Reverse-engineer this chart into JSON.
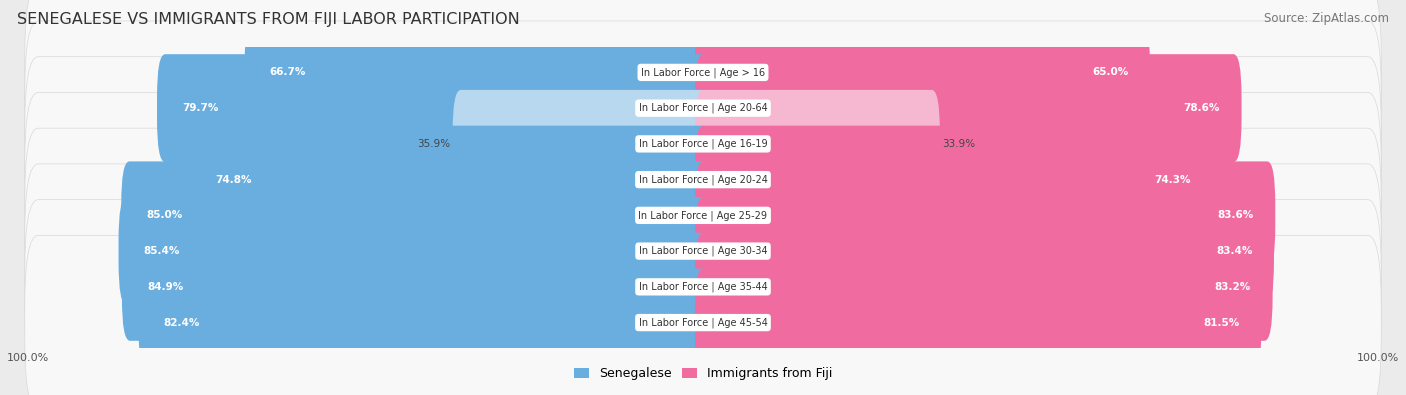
{
  "title": "SENEGALESE VS IMMIGRANTS FROM FIJI LABOR PARTICIPATION",
  "source": "Source: ZipAtlas.com",
  "categories": [
    "In Labor Force | Age > 16",
    "In Labor Force | Age 20-64",
    "In Labor Force | Age 16-19",
    "In Labor Force | Age 20-24",
    "In Labor Force | Age 25-29",
    "In Labor Force | Age 30-34",
    "In Labor Force | Age 35-44",
    "In Labor Force | Age 45-54"
  ],
  "senegalese": [
    66.7,
    79.7,
    35.9,
    74.8,
    85.0,
    85.4,
    84.9,
    82.4
  ],
  "fiji": [
    65.0,
    78.6,
    33.9,
    74.3,
    83.6,
    83.4,
    83.2,
    81.5
  ],
  "sen_color_full": "#6aaee0",
  "sen_color_light": "#b8d8f0",
  "fiji_color_full": "#f06ca0",
  "fiji_color_light": "#f5b8d0",
  "background_color": "#ebebeb",
  "row_bg": "#f8f8f8",
  "row_border": "#d8d8d8",
  "title_fontsize": 11.5,
  "source_fontsize": 8.5,
  "bar_height": 0.62,
  "max_val": 100.0,
  "legend_fontsize": 9
}
